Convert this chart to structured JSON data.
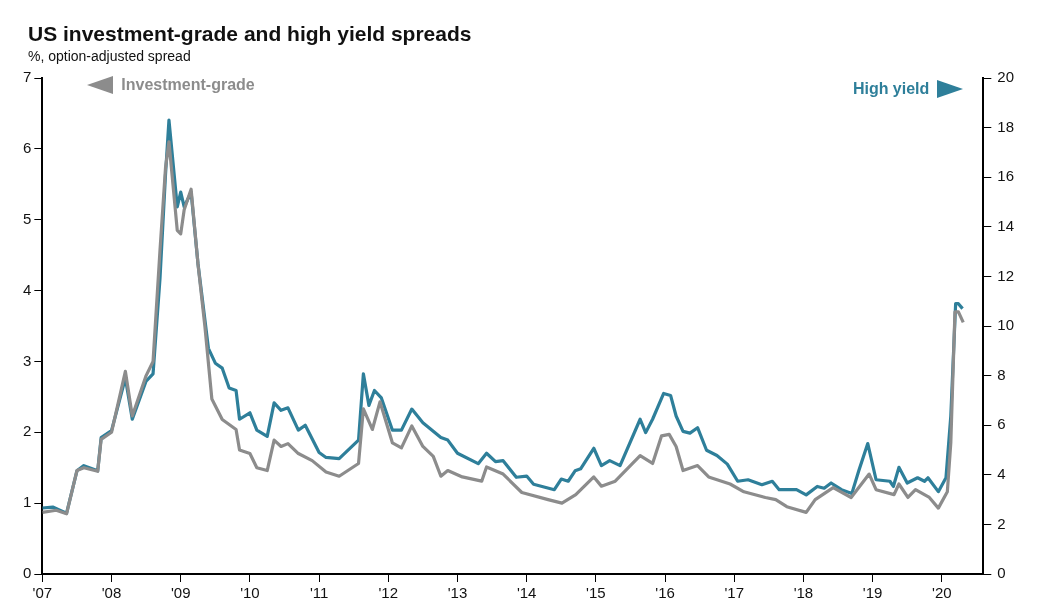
{
  "chart_data": {
    "type": "line",
    "title": "US investment-grade and high yield spreads",
    "subtitle": "%, option-adjusted spread",
    "xlim": [
      2007,
      2020.6
    ],
    "xticks": [
      {
        "value": 2007,
        "label": "'07"
      },
      {
        "value": 2008,
        "label": "'08"
      },
      {
        "value": 2009,
        "label": "'09"
      },
      {
        "value": 2010,
        "label": "'10"
      },
      {
        "value": 2011,
        "label": "'11"
      },
      {
        "value": 2012,
        "label": "'12"
      },
      {
        "value": 2013,
        "label": "'13"
      },
      {
        "value": 2014,
        "label": "'14"
      },
      {
        "value": 2015,
        "label": "'15"
      },
      {
        "value": 2016,
        "label": "'16"
      },
      {
        "value": 2017,
        "label": "'17"
      },
      {
        "value": 2018,
        "label": "'18"
      },
      {
        "value": 2019,
        "label": "'19"
      },
      {
        "value": 2020,
        "label": "'20"
      }
    ],
    "ylim": [
      0,
      7
    ],
    "yticks": [
      0,
      1,
      2,
      3,
      4,
      5,
      6,
      7
    ],
    "y2lim": [
      0,
      20
    ],
    "y2ticks": [
      0,
      2,
      4,
      6,
      8,
      10,
      12,
      14,
      16,
      18,
      20
    ],
    "grid": false,
    "legend": "top",
    "marker": "none",
    "line_style": "solid",
    "series": [
      {
        "name": "Investment-grade",
        "color": "#8c8c8c",
        "axis": "y",
        "x": [
          2007.0,
          2007.2,
          2007.35,
          2007.5,
          2007.6,
          2007.8,
          2007.85,
          2008.0,
          2008.2,
          2008.3,
          2008.5,
          2008.6,
          2008.7,
          2008.78,
          2008.83,
          2008.95,
          2009.0,
          2009.05,
          2009.15,
          2009.25,
          2009.35,
          2009.45,
          2009.6,
          2009.8,
          2009.85,
          2010.0,
          2010.1,
          2010.25,
          2010.35,
          2010.45,
          2010.55,
          2010.7,
          2010.9,
          2011.1,
          2011.29,
          2011.57,
          2011.64,
          2011.77,
          2011.88,
          2012.06,
          2012.19,
          2012.34,
          2012.5,
          2012.65,
          2012.76,
          2012.86,
          2013.07,
          2013.35,
          2013.42,
          2013.66,
          2013.93,
          2014.31,
          2014.51,
          2014.71,
          2014.97,
          2015.08,
          2015.28,
          2015.64,
          2015.82,
          2015.95,
          2016.06,
          2016.16,
          2016.26,
          2016.47,
          2016.63,
          2016.94,
          2017.14,
          2017.45,
          2017.6,
          2017.76,
          2018.04,
          2018.17,
          2018.43,
          2018.69,
          2018.95,
          2019.05,
          2019.31,
          2019.38,
          2019.51,
          2019.62,
          2019.82,
          2019.95,
          2020.08,
          2020.13,
          2020.19,
          2020.24,
          2020.31
        ],
        "values": [
          0.87,
          0.9,
          0.85,
          1.46,
          1.5,
          1.45,
          1.9,
          2.0,
          2.86,
          2.23,
          2.8,
          3.0,
          4.56,
          5.73,
          6.1,
          4.85,
          4.8,
          5.14,
          5.43,
          4.37,
          3.49,
          2.47,
          2.18,
          2.04,
          1.75,
          1.7,
          1.5,
          1.46,
          1.89,
          1.8,
          1.84,
          1.7,
          1.6,
          1.44,
          1.38,
          1.56,
          2.33,
          2.04,
          2.43,
          1.85,
          1.78,
          2.09,
          1.8,
          1.66,
          1.38,
          1.46,
          1.37,
          1.31,
          1.51,
          1.41,
          1.15,
          1.05,
          1.0,
          1.12,
          1.37,
          1.24,
          1.31,
          1.67,
          1.56,
          1.95,
          1.97,
          1.8,
          1.46,
          1.53,
          1.37,
          1.27,
          1.16,
          1.08,
          1.05,
          0.95,
          0.87,
          1.05,
          1.22,
          1.08,
          1.41,
          1.19,
          1.12,
          1.27,
          1.08,
          1.19,
          1.08,
          0.93,
          1.16,
          1.85,
          3.7,
          3.7,
          3.55
        ]
      },
      {
        "name": "High yield",
        "color": "#2e7f9a",
        "axis": "y2",
        "x": [
          2007.0,
          2007.15,
          2007.35,
          2007.5,
          2007.6,
          2007.8,
          2007.85,
          2008.0,
          2008.2,
          2008.3,
          2008.5,
          2008.6,
          2008.7,
          2008.78,
          2008.83,
          2008.95,
          2009.0,
          2009.05,
          2009.15,
          2009.25,
          2009.4,
          2009.5,
          2009.6,
          2009.7,
          2009.8,
          2009.85,
          2010.0,
          2010.1,
          2010.25,
          2010.35,
          2010.45,
          2010.55,
          2010.7,
          2010.8,
          2011.0,
          2011.1,
          2011.29,
          2011.57,
          2011.64,
          2011.72,
          2011.8,
          2011.9,
          2012.06,
          2012.19,
          2012.34,
          2012.5,
          2012.76,
          2012.86,
          2013.0,
          2013.3,
          2013.42,
          2013.55,
          2013.66,
          2013.85,
          2014.0,
          2014.1,
          2014.4,
          2014.5,
          2014.6,
          2014.7,
          2014.78,
          2014.97,
          2015.08,
          2015.2,
          2015.35,
          2015.64,
          2015.72,
          2015.82,
          2015.98,
          2016.08,
          2016.16,
          2016.26,
          2016.36,
          2016.47,
          2016.6,
          2016.75,
          2016.9,
          2017.05,
          2017.2,
          2017.4,
          2017.55,
          2017.65,
          2017.9,
          2018.04,
          2018.2,
          2018.3,
          2018.4,
          2018.55,
          2018.7,
          2018.8,
          2018.93,
          2019.05,
          2019.25,
          2019.3,
          2019.38,
          2019.5,
          2019.65,
          2019.75,
          2019.8,
          2019.95,
          2020.06,
          2020.13,
          2020.2,
          2020.24,
          2020.3
        ],
        "values": [
          2.66,
          2.7,
          2.45,
          4.16,
          4.37,
          4.16,
          5.5,
          5.78,
          7.9,
          6.24,
          7.78,
          8.07,
          11.9,
          16.1,
          18.3,
          14.8,
          15.4,
          14.8,
          15.4,
          12.5,
          9.1,
          8.5,
          8.3,
          7.5,
          7.4,
          6.24,
          6.5,
          5.8,
          5.55,
          6.9,
          6.6,
          6.7,
          5.8,
          6.0,
          4.9,
          4.7,
          4.65,
          5.4,
          8.07,
          6.8,
          7.4,
          7.1,
          5.8,
          5.8,
          6.65,
          6.1,
          5.5,
          5.4,
          4.87,
          4.45,
          4.87,
          4.53,
          4.57,
          3.9,
          3.95,
          3.62,
          3.4,
          3.83,
          3.74,
          4.16,
          4.24,
          5.07,
          4.37,
          4.57,
          4.37,
          6.24,
          5.7,
          6.24,
          7.28,
          7.2,
          6.37,
          5.75,
          5.68,
          5.9,
          4.99,
          4.78,
          4.43,
          3.74,
          3.8,
          3.6,
          3.74,
          3.4,
          3.4,
          3.19,
          3.53,
          3.46,
          3.67,
          3.4,
          3.25,
          4.16,
          5.26,
          3.8,
          3.74,
          3.53,
          4.3,
          3.67,
          3.88,
          3.74,
          3.88,
          3.32,
          3.88,
          6.37,
          10.9,
          10.9,
          10.7
        ]
      }
    ]
  }
}
